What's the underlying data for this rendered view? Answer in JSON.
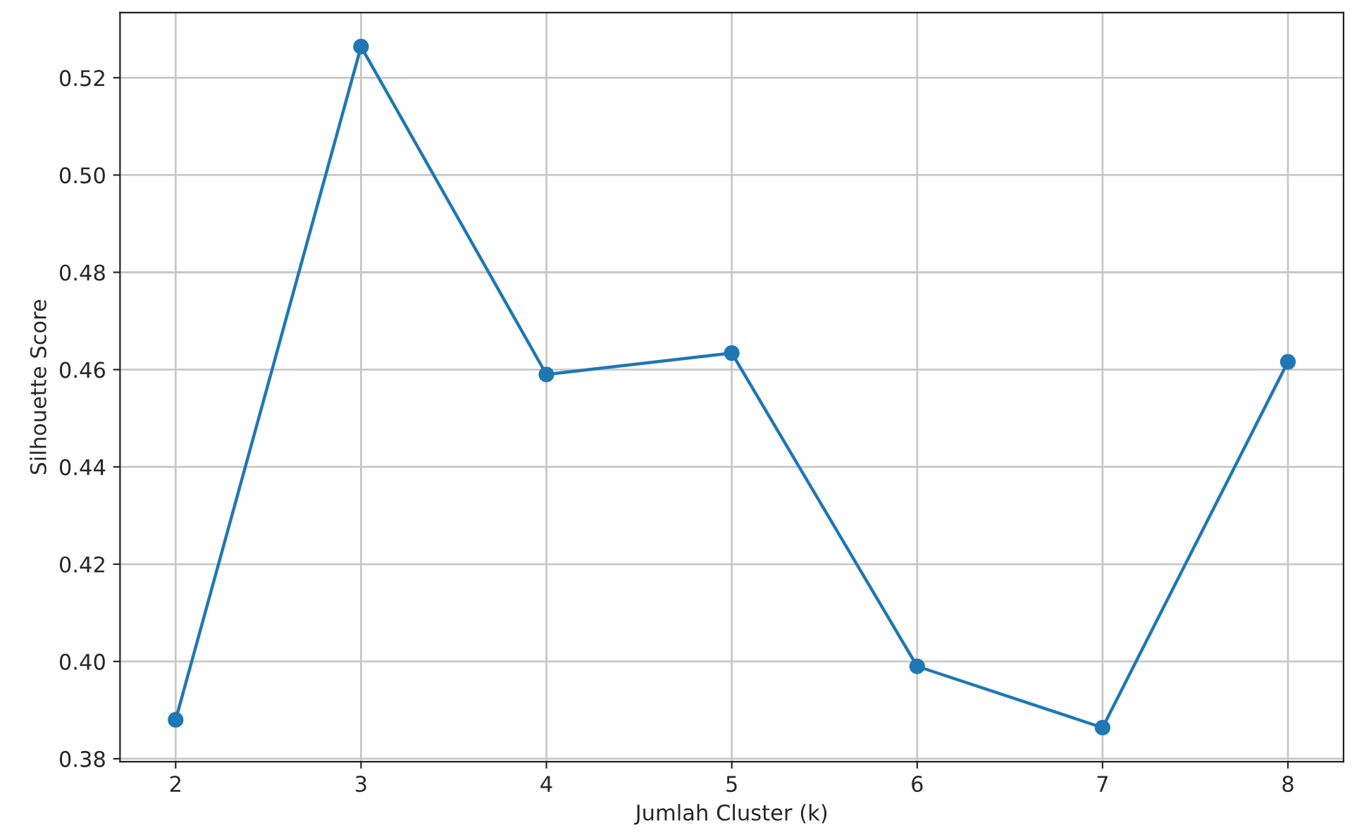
{
  "chart_data": {
    "type": "line",
    "xlabel": "Jumlah Cluster (k)",
    "ylabel": "Silhouette Score",
    "x": [
      2,
      3,
      4,
      5,
      6,
      7,
      8
    ],
    "series": [
      {
        "color": "#1f77b4",
        "values": [
          0.388,
          0.5264,
          0.459,
          0.4634,
          0.399,
          0.3864,
          0.4616
        ]
      }
    ],
    "xlim": [
      1.7,
      8.3
    ],
    "ylim": [
      0.3794,
      0.5334
    ],
    "xticks": [
      2,
      3,
      4,
      5,
      6,
      7,
      8
    ],
    "yticks": [
      0.38,
      {
        "value": 0.4,
        "label": "0.40"
      },
      0.42,
      0.44,
      0.46,
      0.48,
      {
        "value": 0.5,
        "label": "0.50"
      },
      0.52
    ],
    "grid": true,
    "marker": "circle",
    "line_style": "solid"
  }
}
